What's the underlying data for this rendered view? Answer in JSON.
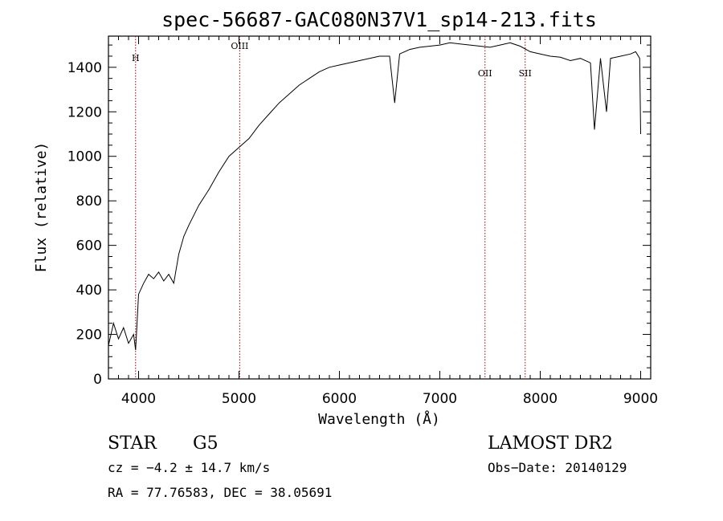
{
  "chart_data": {
    "type": "line",
    "title": "spec-56687-GAC080N37V1_sp14-213.fits",
    "xlabel": "Wavelength (Å)",
    "ylabel": "Flux (relative)",
    "xlim": [
      3700,
      9100
    ],
    "ylim": [
      0,
      1540
    ],
    "xticks": [
      4000,
      5000,
      6000,
      7000,
      8000,
      9000
    ],
    "yticks": [
      0,
      200,
      400,
      600,
      800,
      1000,
      1200,
      1400
    ],
    "grid": false,
    "series": [
      {
        "x": [
          3700,
          3750,
          3800,
          3850,
          3900,
          3950,
          3970,
          4000,
          4050,
          4100,
          4150,
          4200,
          4250,
          4300,
          4350,
          4400,
          4450,
          4500,
          4600,
          4700,
          4800,
          4900,
          5000,
          5100,
          5200,
          5300,
          5400,
          5500,
          5600,
          5700,
          5800,
          5900,
          6000,
          6100,
          6200,
          6300,
          6400,
          6500,
          6550,
          6600,
          6700,
          6800,
          6900,
          7000,
          7100,
          7200,
          7300,
          7400,
          7500,
          7600,
          7700,
          7800,
          7900,
          8000,
          8100,
          8200,
          8300,
          8400,
          8500,
          8540,
          8600,
          8660,
          8700,
          8800,
          8900,
          8950,
          8990,
          9000
        ],
        "y": [
          150,
          250,
          180,
          230,
          160,
          200,
          130,
          380,
          430,
          470,
          450,
          480,
          440,
          470,
          430,
          560,
          640,
          690,
          780,
          850,
          930,
          1000,
          1040,
          1080,
          1140,
          1190,
          1240,
          1280,
          1320,
          1350,
          1380,
          1400,
          1410,
          1420,
          1430,
          1440,
          1450,
          1450,
          1240,
          1460,
          1480,
          1490,
          1495,
          1500,
          1510,
          1505,
          1500,
          1495,
          1490,
          1500,
          1510,
          1495,
          1470,
          1460,
          1450,
          1445,
          1430,
          1440,
          1420,
          1120,
          1440,
          1200,
          1440,
          1450,
          1460,
          1470,
          1440,
          1100
        ]
      }
    ],
    "lines": [
      {
        "label": "H",
        "x": 3970
      },
      {
        "label": "OIII",
        "x": 5007
      },
      {
        "label": "OII",
        "x": 7450
      },
      {
        "label": "SII",
        "x": 7850
      }
    ]
  },
  "footer": {
    "class": "STAR",
    "subclass": "G5",
    "survey": "LAMOST DR2",
    "cz": "cz = −4.2 ± 14.7 km/s",
    "obsdate": "Obs−Date: 20140129",
    "radec": "RA =  77.76583, DEC =  38.05691"
  }
}
